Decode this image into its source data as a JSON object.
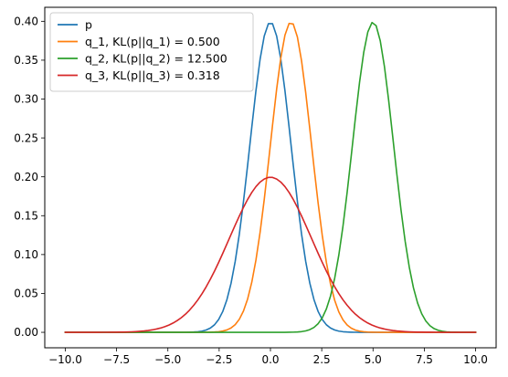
{
  "chart_data": {
    "type": "line",
    "title": "",
    "xlabel": "",
    "ylabel": "",
    "xlim": [
      -11.0,
      11.0
    ],
    "ylim": [
      -0.0199,
      0.418
    ],
    "x_ticks": [
      -10.0,
      -7.5,
      -5.0,
      -2.5,
      0.0,
      2.5,
      5.0,
      7.5,
      10.0
    ],
    "x_tick_labels": [
      "−10.0",
      "−7.5",
      "−5.0",
      "−2.5",
      "0.0",
      "2.5",
      "5.0",
      "7.5",
      "10.0"
    ],
    "y_ticks": [
      0.0,
      0.05,
      0.1,
      0.15,
      0.2,
      0.25,
      0.3,
      0.35,
      0.4
    ],
    "y_tick_labels": [
      "0.00",
      "0.05",
      "0.10",
      "0.15",
      "0.20",
      "0.25",
      "0.30",
      "0.35",
      "0.40"
    ],
    "grid": false,
    "legend_position": "upper-left",
    "x_range": {
      "start": -10,
      "stop": 10,
      "points": 100
    },
    "series": [
      {
        "name": "p",
        "color": "#1f77b4",
        "distribution": "normal",
        "mean": 0,
        "std": 1
      },
      {
        "name": "q_1, KL(p||q_1) = 0.500",
        "color": "#ff7f0e",
        "distribution": "normal",
        "mean": 1,
        "std": 1
      },
      {
        "name": "q_2, KL(p||q_2) = 12.500",
        "color": "#2ca02c",
        "distribution": "normal",
        "mean": 5,
        "std": 1
      },
      {
        "name": "q_3, KL(p||q_3) = 0.318",
        "color": "#d62728",
        "distribution": "normal",
        "mean": 0,
        "std": 2
      }
    ]
  }
}
